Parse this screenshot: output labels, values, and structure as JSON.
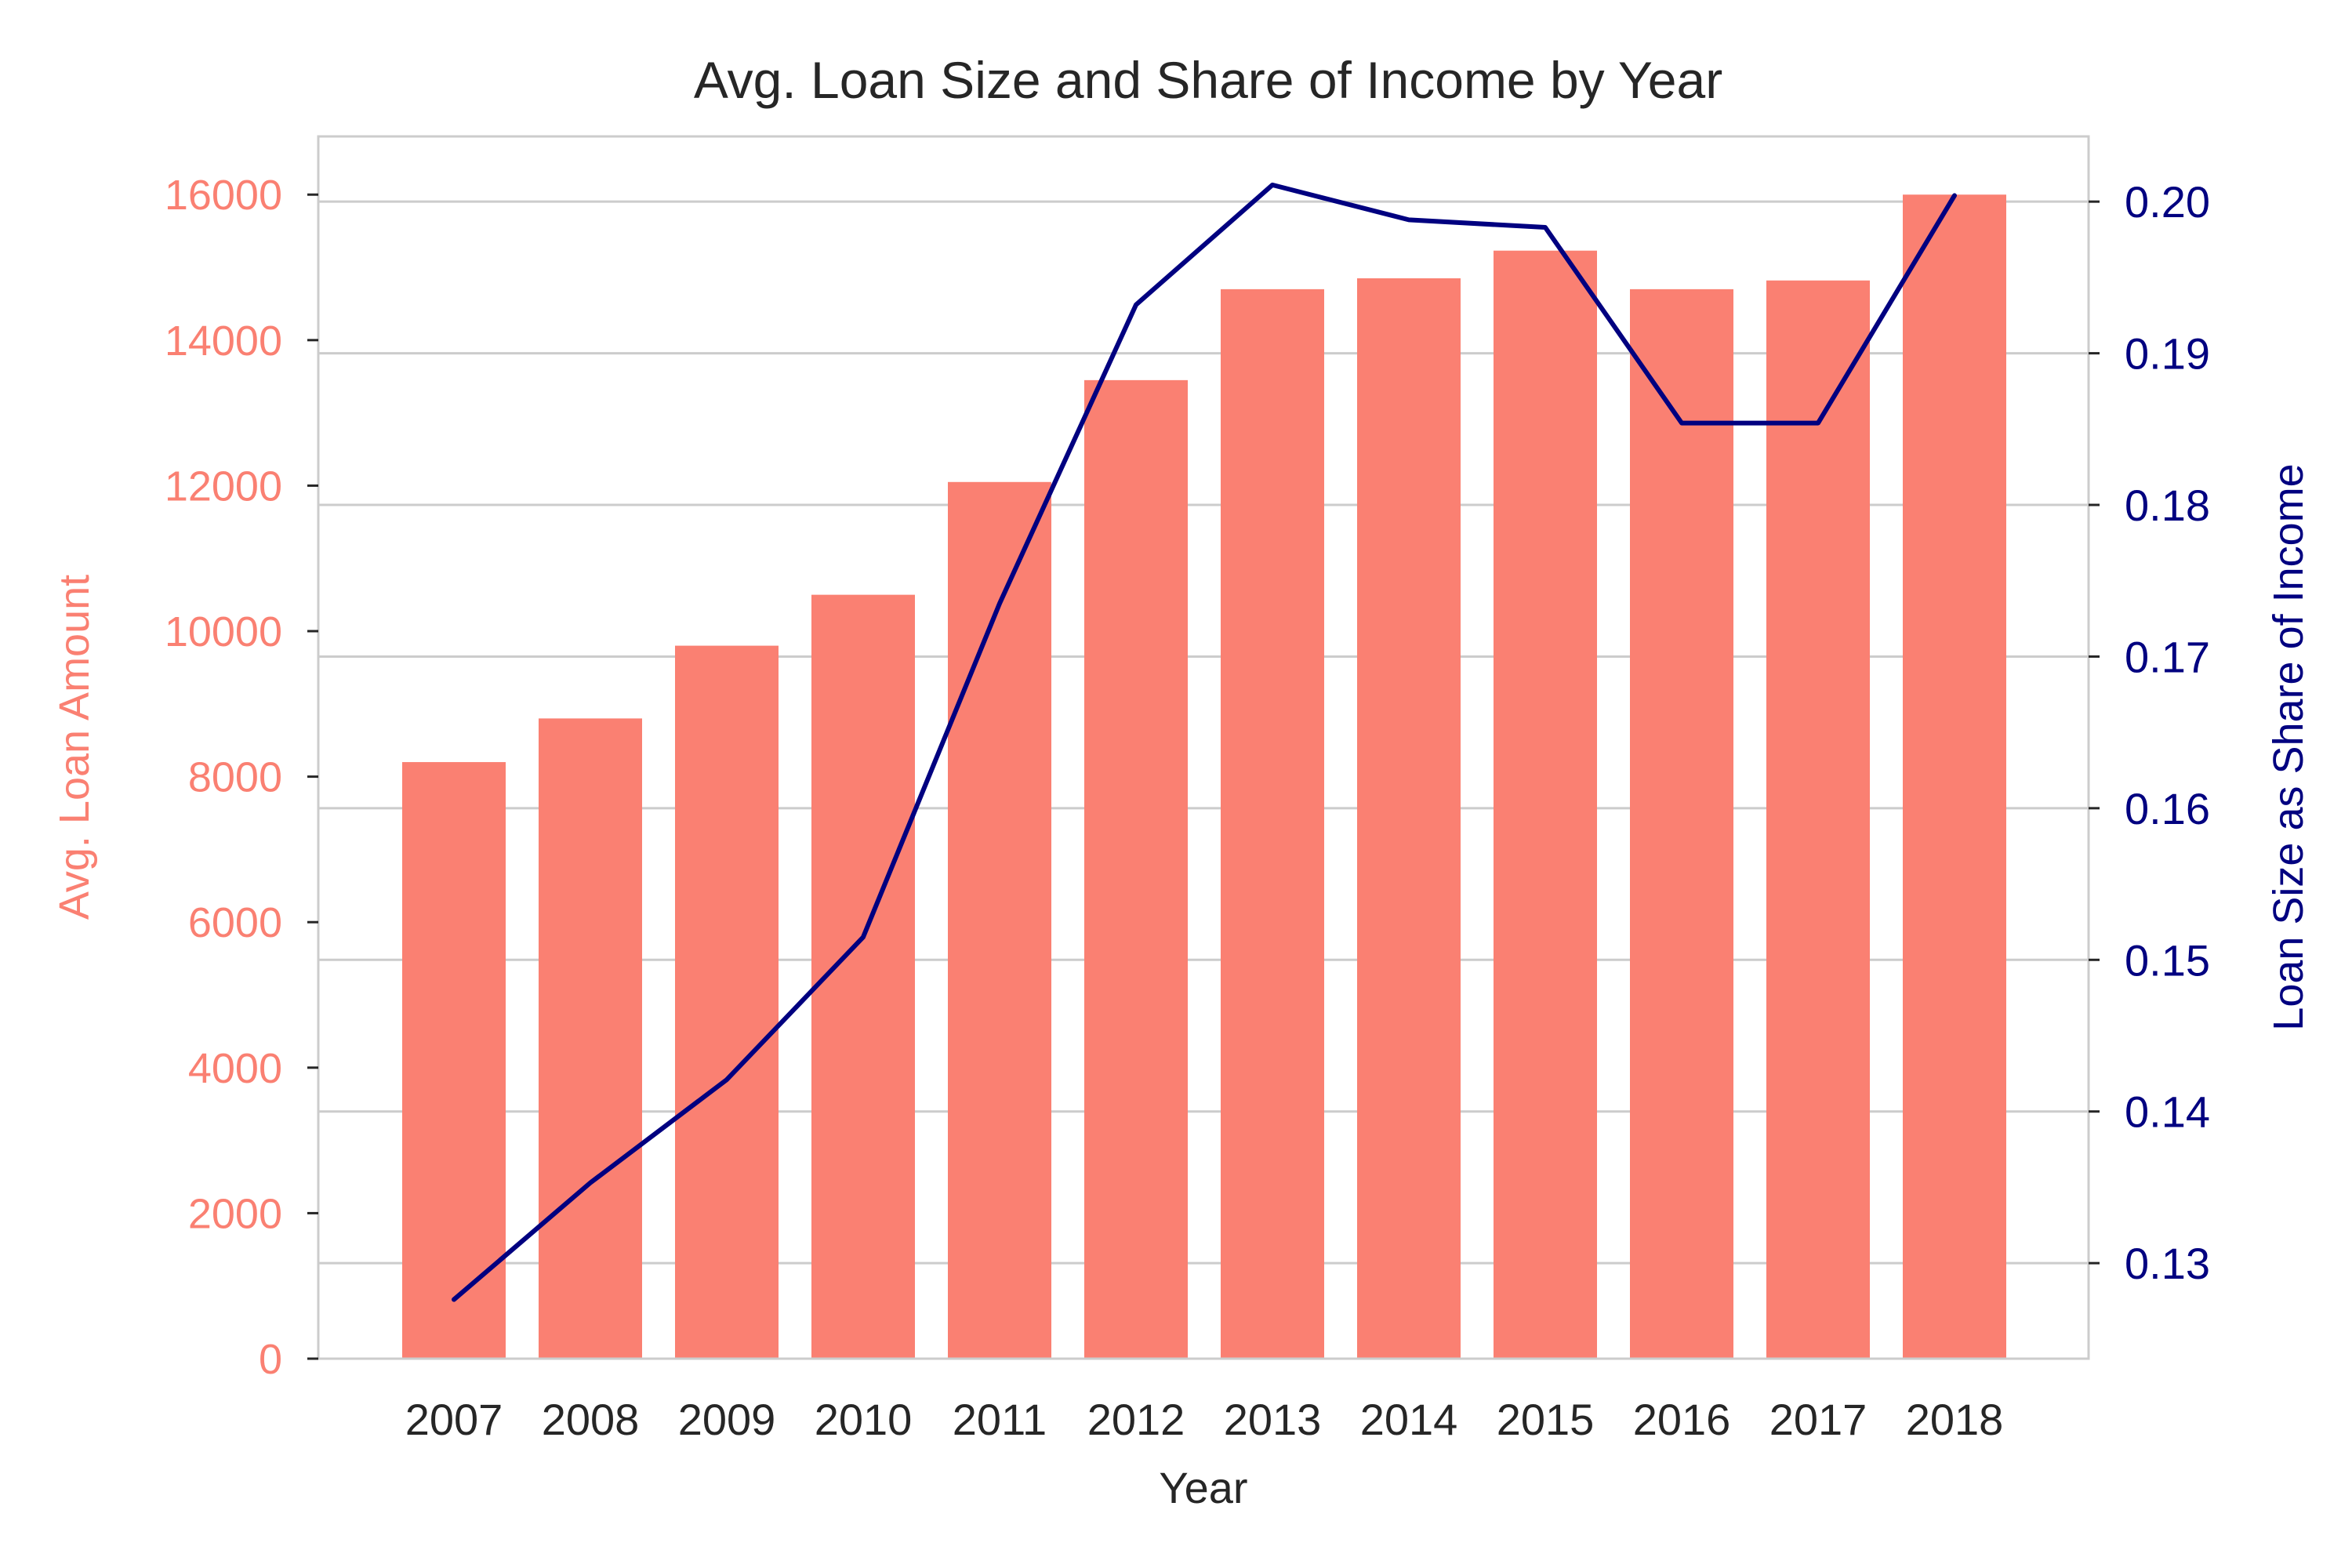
{
  "chart_data": {
    "type": "bar",
    "title": "Avg. Loan Size and Share of Income by Year",
    "xlabel": "Year",
    "categories": [
      "2007",
      "2008",
      "2009",
      "2010",
      "2011",
      "2012",
      "2013",
      "2014",
      "2015",
      "2016",
      "2017",
      "2018"
    ],
    "series": [
      {
        "name": "Avg. Loan Amount",
        "type": "bar",
        "axis": "left",
        "color": "#fa8072",
        "values": [
          8200,
          8800,
          9800,
          10500,
          12050,
          13450,
          14700,
          14850,
          15230,
          14700,
          14820,
          16000
        ]
      },
      {
        "name": "Loan Size as Share of Income",
        "type": "line",
        "axis": "right",
        "color": "#000080",
        "values": [
          0.1276,
          0.1353,
          0.1421,
          0.1515,
          0.1735,
          0.1932,
          0.2011,
          0.1988,
          0.1983,
          0.1854,
          0.1854,
          0.2004
        ]
      }
    ],
    "y_left": {
      "label": "Avg. Loan Amount",
      "ticks": [
        "0",
        "2000",
        "4000",
        "6000",
        "8000",
        "10000",
        "12000",
        "14000",
        "16000"
      ],
      "tick_values": [
        0,
        2000,
        4000,
        6000,
        8000,
        10000,
        12000,
        14000,
        16000
      ],
      "ylim": [
        0,
        16800
      ],
      "color": "#fa8072"
    },
    "y_right": {
      "label": "Loan Size as Share of Income",
      "ticks": [
        "0.13",
        "0.14",
        "0.15",
        "0.16",
        "0.17",
        "0.18",
        "0.19",
        "0.20"
      ],
      "tick_values": [
        0.13,
        0.14,
        0.15,
        0.16,
        0.17,
        0.18,
        0.19,
        0.2
      ],
      "ylim": [
        0.1237,
        0.2043
      ],
      "color": "#000080"
    },
    "grid": true,
    "grid_axis": "y-right",
    "legend": "none"
  }
}
